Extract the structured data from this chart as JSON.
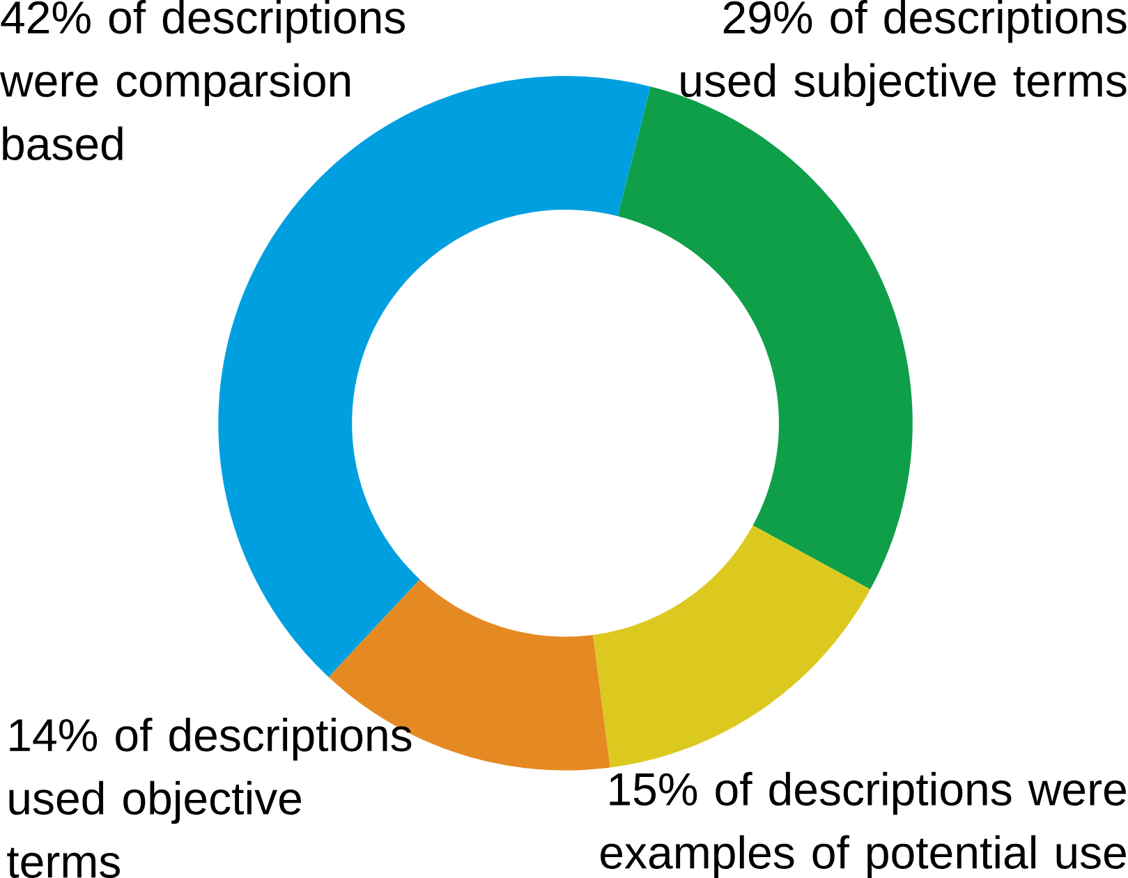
{
  "chart_data": {
    "type": "donut",
    "categories": [
      "42% of descriptions were comparsion based",
      "29% of descriptions used subjective terms",
      "15% of descriptions were examples of potential use",
      "14% of descriptions used objective terms"
    ],
    "values": [
      42,
      29,
      15,
      14
    ],
    "colors": [
      "#00a0e0",
      "#0e9f48",
      "#dcc91f",
      "#e58a22"
    ]
  }
}
